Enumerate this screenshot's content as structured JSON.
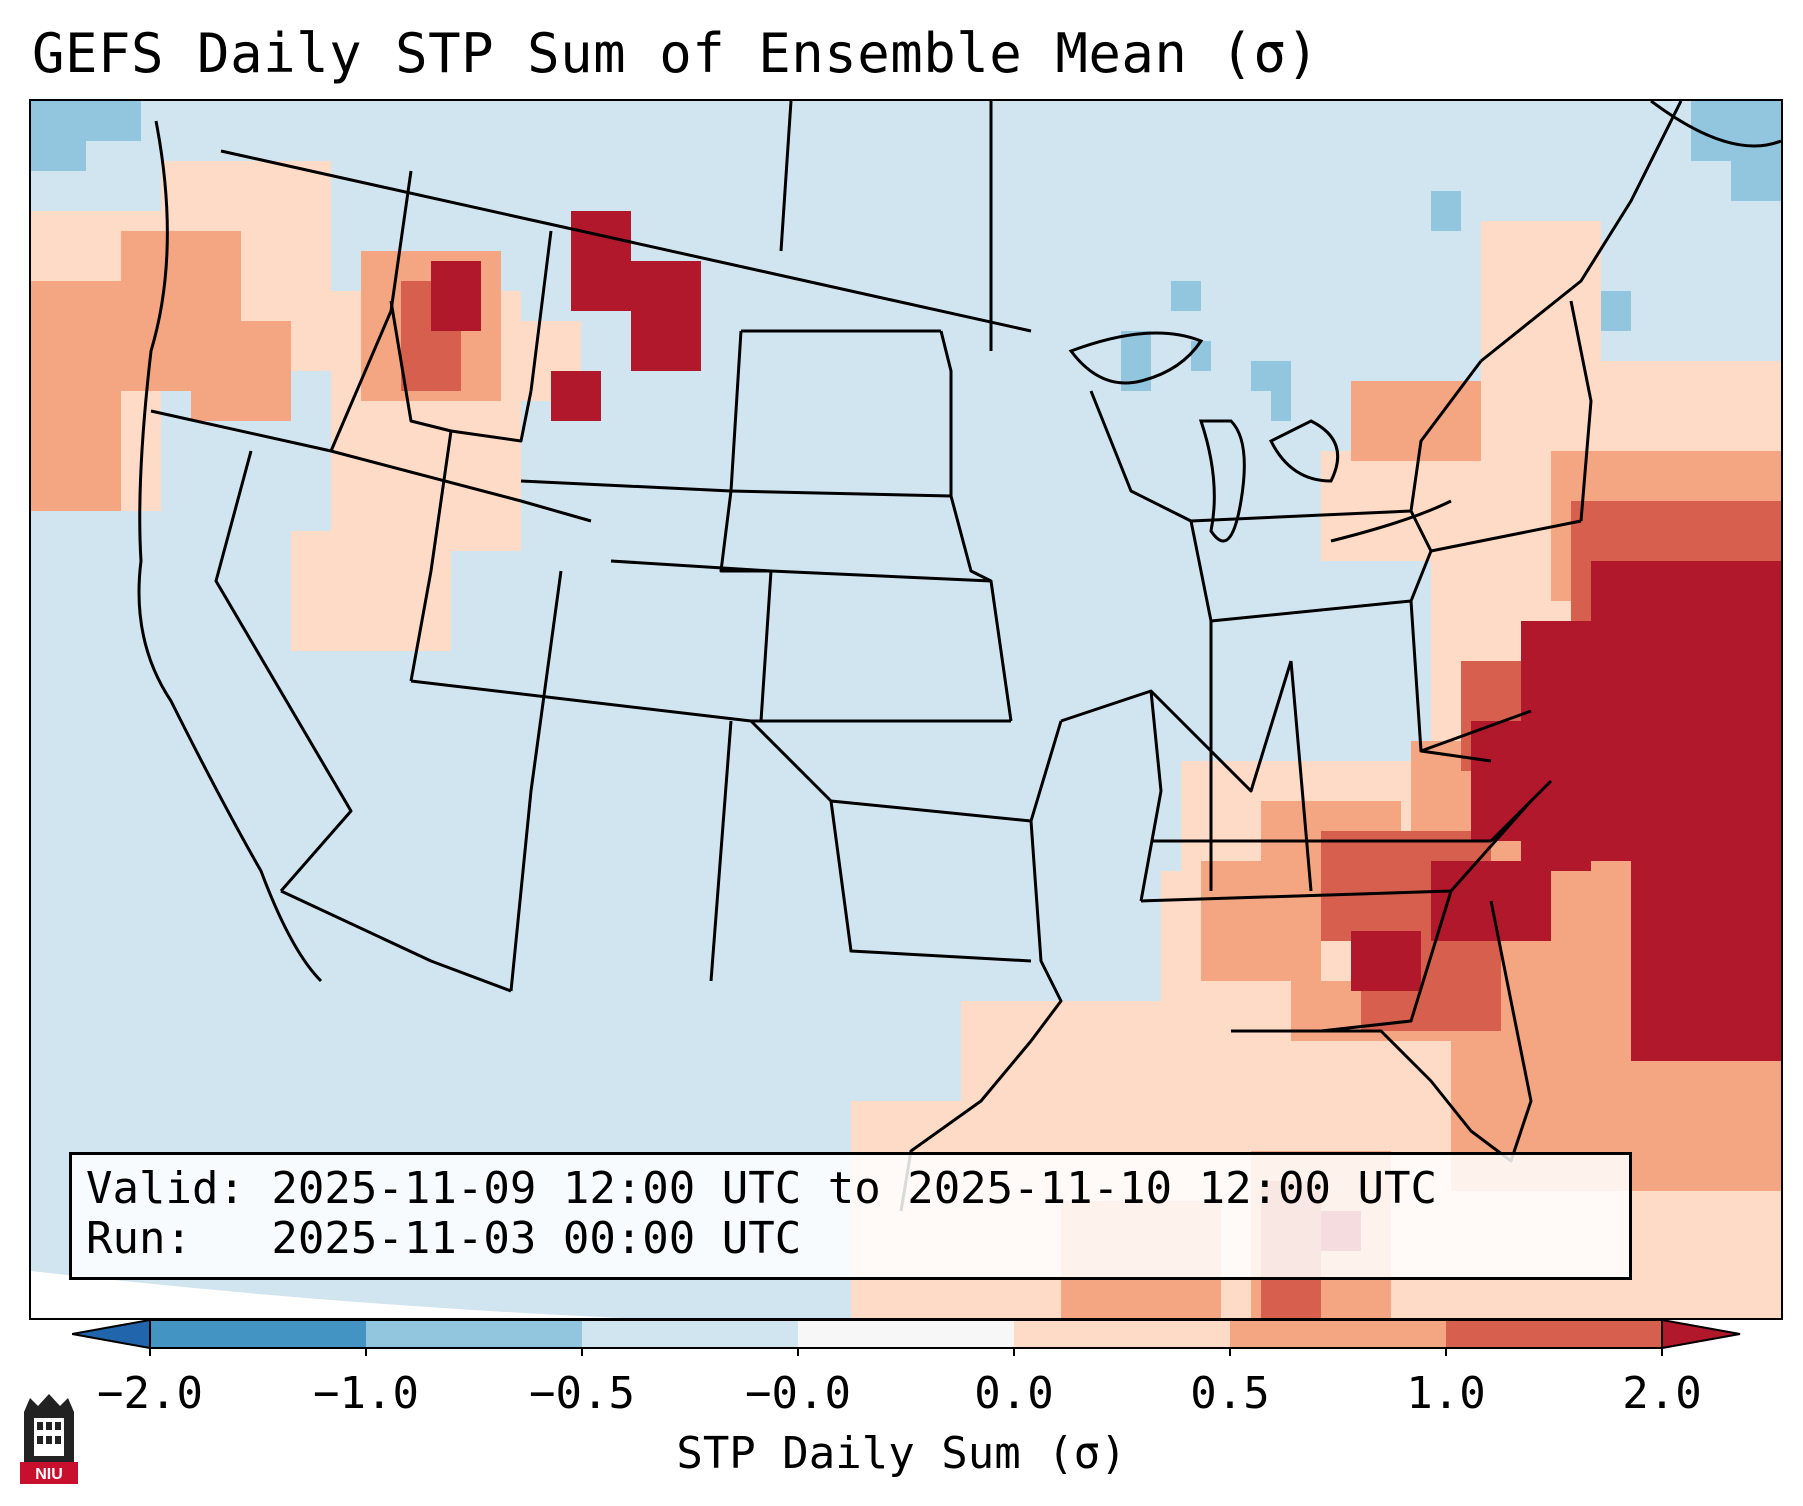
{
  "title": "GEFS Daily STP Sum of Ensemble Mean (σ)",
  "valid": {
    "valid_line": "Valid: 2025-11-09 12:00 UTC to 2025-11-10 12:00 UTC",
    "run_line": "Run:   2025-11-03 00:00 UTC"
  },
  "colorbar": {
    "label": "STP Daily Sum (σ)",
    "ticks": [
      "−2.0",
      "−1.0",
      "−0.5",
      "−0.0",
      "0.0",
      "0.5",
      "1.0",
      "2.0"
    ],
    "bin_colors": [
      "#4393c3",
      "#92c5de",
      "#d1e5f0",
      "#f7f7f7",
      "#fddbc7",
      "#f4a582",
      "#d6604d"
    ],
    "under_color": "#2166ac",
    "over_color": "#b2182b"
  },
  "map": {
    "background_color": "#d1e5f0",
    "ocean_extent_color": "#ffffff",
    "anomaly_regions": [
      {
        "name": "southeast-coast",
        "level": "high"
      },
      {
        "name": "gulf-of-mexico",
        "level": "moderate"
      },
      {
        "name": "pacific-northwest",
        "level": "moderate"
      },
      {
        "name": "northern-rockies",
        "level": "high"
      },
      {
        "name": "northeast",
        "level": "moderate"
      },
      {
        "name": "great-lakes",
        "level": "slightly-negative"
      }
    ]
  },
  "logo": {
    "text": "NIU",
    "icon": "niu-logo-icon"
  }
}
